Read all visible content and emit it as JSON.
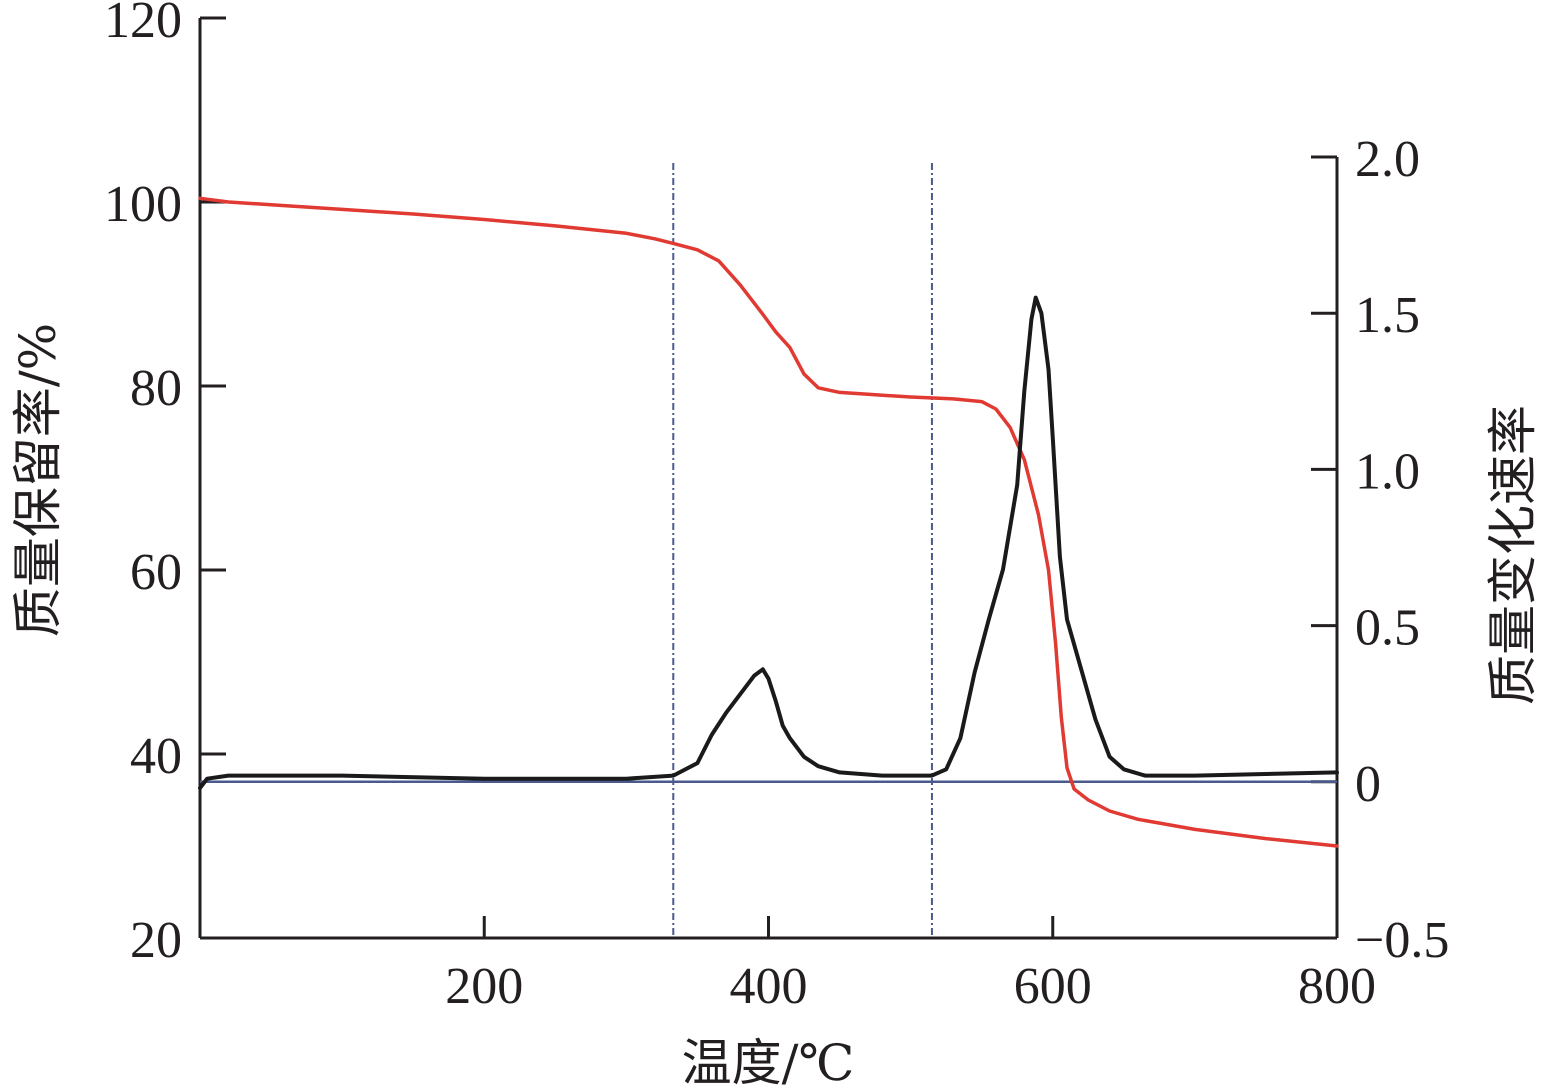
{
  "chart_data": {
    "type": "line",
    "title": "",
    "xlabel": "温度/℃",
    "ylabel_left": "质量保留率/%",
    "ylabel_right": "质量变化速率",
    "xlim": [
      0,
      800
    ],
    "ylim_left": [
      20,
      120
    ],
    "ylim_right": [
      -0.5,
      2.0
    ],
    "x_ticks": [
      200,
      400,
      600,
      800
    ],
    "y_left_ticks": [
      20,
      40,
      60,
      80,
      100,
      120
    ],
    "y_right_ticks": [
      -0.5,
      0,
      0.5,
      1.0,
      1.5,
      2.0
    ],
    "x_tick_labels": [
      "200",
      "400",
      "600",
      "800"
    ],
    "y_left_tick_labels": [
      "20",
      "40",
      "60",
      "80",
      "100",
      "120"
    ],
    "y_right_tick_labels": [
      "−0.5",
      "0",
      "0.5",
      "1.0",
      "1.5",
      "2.0"
    ],
    "grid": false,
    "vlines": [
      333,
      515
    ],
    "hline_right": 0,
    "colors": {
      "mass": "#e03a32",
      "rate": "#1a1a1a",
      "ref": "#4a5a8c",
      "axis": "#231f20"
    },
    "series": [
      {
        "axis": "left",
        "color": "#e03a32",
        "x": [
          0,
          20,
          50,
          100,
          150,
          200,
          250,
          300,
          320,
          333,
          350,
          365,
          380,
          395,
          405,
          415,
          425,
          435,
          450,
          470,
          500,
          530,
          550,
          560,
          570,
          580,
          590,
          597,
          602,
          606,
          610,
          615,
          625,
          640,
          660,
          700,
          750,
          800
        ],
        "y": [
          100.4,
          100.0,
          99.7,
          99.2,
          98.7,
          98.1,
          97.4,
          96.6,
          96.0,
          95.5,
          94.8,
          93.6,
          91.0,
          88.0,
          85.9,
          84.2,
          81.3,
          79.8,
          79.3,
          79.1,
          78.8,
          78.6,
          78.3,
          77.5,
          75.5,
          72.0,
          66.0,
          60.0,
          52.0,
          44.0,
          38.5,
          36.2,
          35.0,
          33.8,
          32.9,
          31.8,
          30.8,
          30.0
        ]
      },
      {
        "axis": "right",
        "color": "#1a1a1a",
        "x": [
          0,
          5,
          20,
          100,
          200,
          300,
          333,
          350,
          360,
          370,
          380,
          390,
          396,
          400,
          405,
          410,
          415,
          425,
          435,
          450,
          480,
          515,
          525,
          535,
          545,
          555,
          565,
          575,
          580,
          585,
          588,
          592,
          597,
          600,
          605,
          610,
          620,
          630,
          640,
          650,
          665,
          700,
          800
        ],
        "y": [
          -0.02,
          0.01,
          0.02,
          0.02,
          0.01,
          0.01,
          0.02,
          0.06,
          0.15,
          0.22,
          0.28,
          0.34,
          0.36,
          0.33,
          0.26,
          0.18,
          0.14,
          0.08,
          0.05,
          0.03,
          0.02,
          0.02,
          0.04,
          0.14,
          0.35,
          0.52,
          0.68,
          0.95,
          1.25,
          1.48,
          1.55,
          1.5,
          1.32,
          1.1,
          0.72,
          0.52,
          0.36,
          0.2,
          0.08,
          0.04,
          0.02,
          0.02,
          0.03
        ]
      }
    ]
  }
}
